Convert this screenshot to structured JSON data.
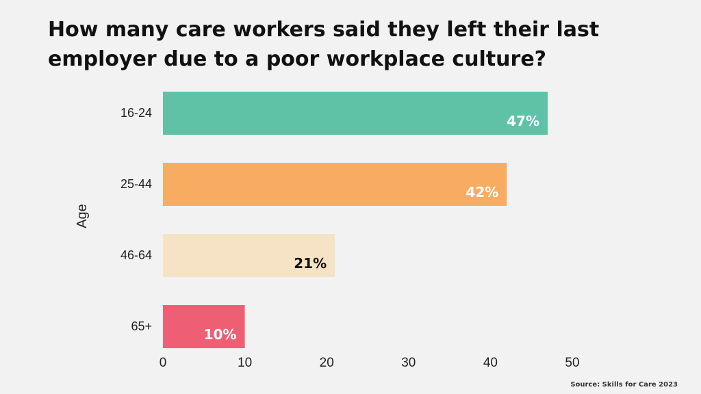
{
  "slide": {
    "title": "How many care workers said they left their last employer due to a poor workplace culture?",
    "source": "Source: Skills for Care 2023"
  },
  "chart_data": {
    "type": "bar",
    "orientation": "horizontal",
    "title": "How many care workers said they left their last employer due to a poor workplace culture?",
    "ylabel": "Age",
    "xlabel": "",
    "categories": [
      "16-24",
      "25-44",
      "46-64",
      "65+"
    ],
    "values": [
      47,
      42,
      21,
      10
    ],
    "data_labels": [
      "47%",
      "42%",
      "21%",
      "10%"
    ],
    "colors": [
      "#5fc2a7",
      "#f8ac62",
      "#f6e2c4",
      "#ee5f73"
    ],
    "label_colors": [
      "#ffffff",
      "#ffffff",
      "#111111",
      "#ffffff"
    ],
    "xlim": [
      0,
      50
    ],
    "xticks": [
      "0",
      "10",
      "20",
      "30",
      "40",
      "50"
    ],
    "grid": false,
    "legend": "none"
  }
}
